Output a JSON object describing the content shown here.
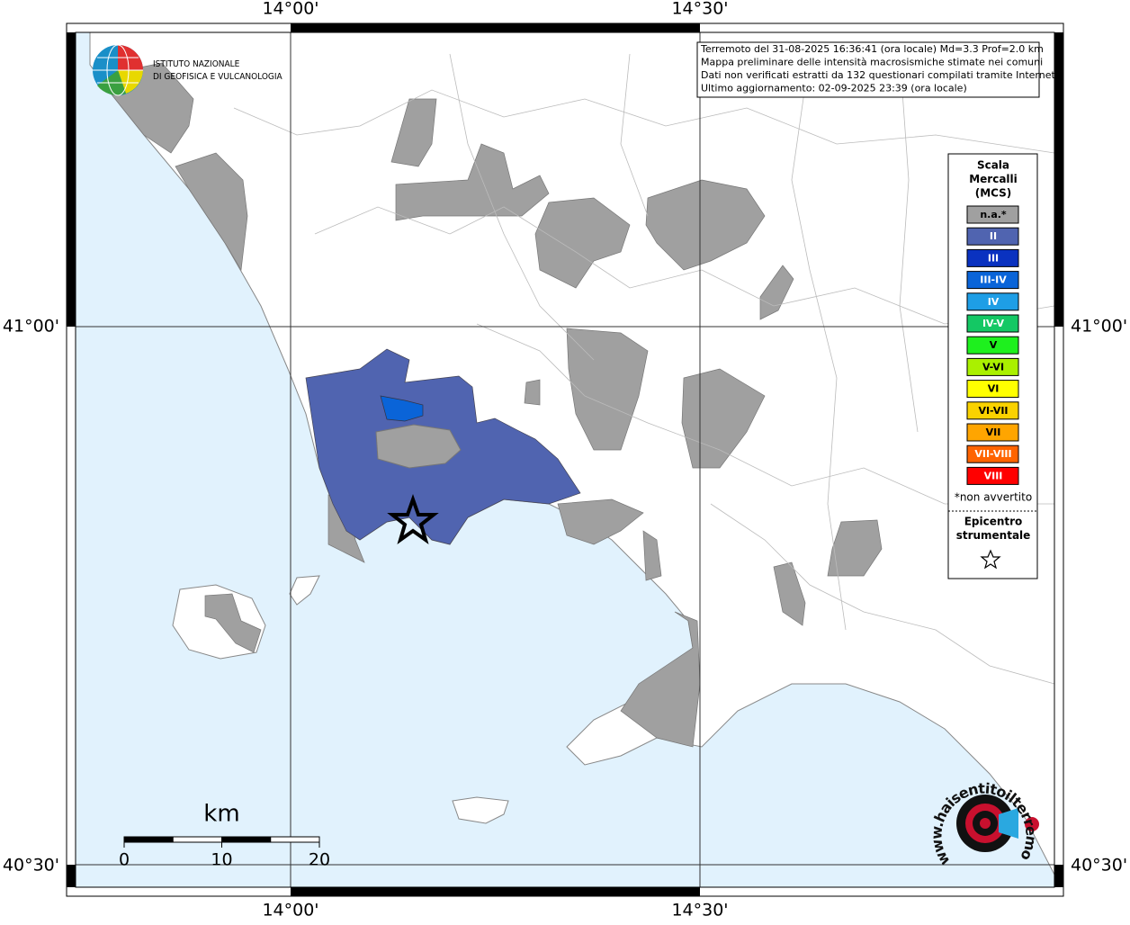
{
  "header": {
    "info_lines": [
      "Terremoto del 31-08-2025 16:36:41 (ora locale) Md=3.3 Prof=2.0 km",
      "Mappa preliminare delle intensità macrosismiche stimate nei comuni",
      "Dati non verificati estratti da 132 questionari compilati tramite Internet.",
      "Ultimo aggiornamento: 02-09-2025 23:39 (ora locale)"
    ]
  },
  "logo": {
    "lines": [
      "ISTITUTO NAZIONALE",
      "DI GEOFISICA E VULCANOLOGIA"
    ]
  },
  "grid": {
    "lon_labels": [
      "14°00'",
      "14°30'"
    ],
    "lat_labels": [
      "41°00'",
      "40°30'"
    ]
  },
  "legend": {
    "title_lines": [
      "Scala",
      "Mercalli",
      "(MCS)"
    ],
    "items": [
      {
        "label": "n.a.*",
        "color": "#a0a0a0"
      },
      {
        "label": "II",
        "color": "#5064b0"
      },
      {
        "label": "III",
        "color": "#0a32c0"
      },
      {
        "label": "III-IV",
        "color": "#0a64d8"
      },
      {
        "label": "IV",
        "color": "#1e9ee6"
      },
      {
        "label": "IV-V",
        "color": "#14c864"
      },
      {
        "label": "V",
        "color": "#1ef01e"
      },
      {
        "label": "V-VI",
        "color": "#aaf000"
      },
      {
        "label": "VI",
        "color": "#ffff00"
      },
      {
        "label": "VI-VII",
        "color": "#fad200"
      },
      {
        "label": "VII",
        "color": "#ffa500"
      },
      {
        "label": "VII-VIII",
        "color": "#ff6400"
      },
      {
        "label": "VIII",
        "color": "#ff0000"
      }
    ],
    "footnote": "*non avvertito",
    "epicenter_lines": [
      "Epicentro",
      "strumentale"
    ]
  },
  "scale_bar": {
    "unit": "km",
    "ticks": [
      0,
      10,
      20
    ]
  },
  "website": "www.haisentitoilterremoto.it"
}
